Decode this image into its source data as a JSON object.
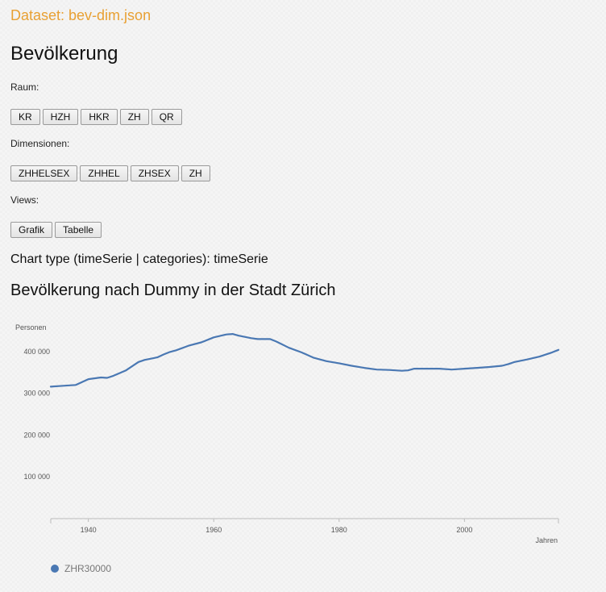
{
  "header": {
    "dataset_title": "Dataset: bev-dim.json",
    "page_title": "Bevölkerung"
  },
  "raum": {
    "label": "Raum:",
    "buttons": [
      "KR",
      "HZH",
      "HKR",
      "ZH",
      "QR"
    ]
  },
  "dimensionen": {
    "label": "Dimensionen:",
    "buttons": [
      "ZHHELSEX",
      "ZHHEL",
      "ZHSEX",
      "ZH"
    ]
  },
  "views": {
    "label": "Views:",
    "buttons": [
      "Grafik",
      "Tabelle"
    ]
  },
  "chart_type_text": "Chart type (timeSerie | categories): timeSerie",
  "chart_title": "Bevölkerung nach Dummy in der Stadt Zürich",
  "colors": {
    "series": "#4a78b3",
    "dataset_title": "#e8a033"
  },
  "chart_data": {
    "type": "line",
    "title": "Bevölkerung nach Dummy in der Stadt Zürich",
    "xlabel": "Jahren",
    "ylabel": "Personen",
    "xlim": [
      1934,
      2015
    ],
    "ylim": [
      0,
      450000
    ],
    "x_ticks": [
      1940,
      1960,
      1980,
      2000
    ],
    "x_tick_labels": [
      "1940",
      "1960",
      "1980",
      "2000"
    ],
    "y_ticks": [
      100000,
      200000,
      300000,
      400000
    ],
    "y_tick_labels": [
      "100 000",
      "200 000",
      "300 000",
      "400 000"
    ],
    "grid": false,
    "legend_position": "bottom-left",
    "series": [
      {
        "name": "ZHR30000",
        "x": [
          1934,
          1936,
          1938,
          1940,
          1942,
          1943,
          1944,
          1946,
          1948,
          1949,
          1950,
          1951,
          1952,
          1953,
          1954,
          1956,
          1958,
          1960,
          1962,
          1963,
          1964,
          1966,
          1967,
          1969,
          1970,
          1972,
          1974,
          1976,
          1978,
          1980,
          1982,
          1984,
          1986,
          1988,
          1990,
          1991,
          1992,
          1994,
          1996,
          1998,
          2000,
          2002,
          2004,
          2006,
          2007,
          2008,
          2010,
          2012,
          2014,
          2015
        ],
        "y": [
          316000,
          318000,
          320000,
          334000,
          338000,
          337000,
          342000,
          355000,
          375000,
          380000,
          383000,
          386000,
          393000,
          399000,
          403000,
          414000,
          422000,
          434000,
          441000,
          442000,
          438000,
          432000,
          430000,
          430000,
          424000,
          409000,
          398000,
          385000,
          377000,
          372000,
          366000,
          361000,
          357000,
          356000,
          354000,
          355000,
          359000,
          359000,
          359000,
          357000,
          359000,
          361000,
          363000,
          366000,
          370000,
          375000,
          381000,
          388000,
          398000,
          404000
        ]
      }
    ]
  }
}
